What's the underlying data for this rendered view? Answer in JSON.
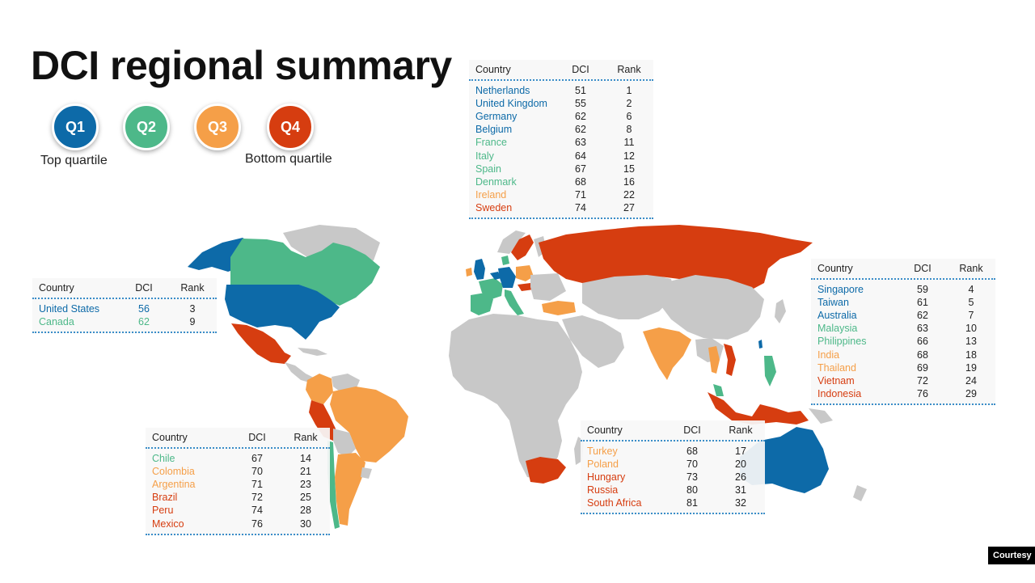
{
  "title": "DCI regional summary",
  "colors": {
    "q1": "#0d6aa8",
    "q2": "#4db889",
    "q3": "#f59f48",
    "q4": "#d63d10",
    "other": "#c8c8c8"
  },
  "legend": {
    "badges": [
      "Q1",
      "Q2",
      "Q3",
      "Q4"
    ],
    "top_label": "Top quartile",
    "bottom_label": "Bottom quartile"
  },
  "table_headers": {
    "country": "Country",
    "dci": "DCI",
    "rank": "Rank"
  },
  "tables": {
    "europe": [
      {
        "country": "Netherlands",
        "dci": "51",
        "rank": "1",
        "q": "q1"
      },
      {
        "country": "United Kingdom",
        "dci": "55",
        "rank": "2",
        "q": "q1"
      },
      {
        "country": "Germany",
        "dci": "62",
        "rank": "6",
        "q": "q1"
      },
      {
        "country": "Belgium",
        "dci": "62",
        "rank": "8",
        "q": "q1"
      },
      {
        "country": "France",
        "dci": "63",
        "rank": "11",
        "q": "q2"
      },
      {
        "country": "Italy",
        "dci": "64",
        "rank": "12",
        "q": "q2"
      },
      {
        "country": "Spain",
        "dci": "67",
        "rank": "15",
        "q": "q2"
      },
      {
        "country": "Denmark",
        "dci": "68",
        "rank": "16",
        "q": "q2"
      },
      {
        "country": "Ireland",
        "dci": "71",
        "rank": "22",
        "q": "q3"
      },
      {
        "country": "Sweden",
        "dci": "74",
        "rank": "27",
        "q": "q4"
      }
    ],
    "north_america": [
      {
        "country": "United States",
        "dci": "56",
        "rank": "3",
        "q": "q1"
      },
      {
        "country": "Canada",
        "dci": "62",
        "rank": "9",
        "q": "q2"
      }
    ],
    "asia_pacific": [
      {
        "country": "Singapore",
        "dci": "59",
        "rank": "4",
        "q": "q1"
      },
      {
        "country": "Taiwan",
        "dci": "61",
        "rank": "5",
        "q": "q1"
      },
      {
        "country": "Australia",
        "dci": "62",
        "rank": "7",
        "q": "q1"
      },
      {
        "country": "Malaysia",
        "dci": "63",
        "rank": "10",
        "q": "q2"
      },
      {
        "country": "Philippines",
        "dci": "66",
        "rank": "13",
        "q": "q2"
      },
      {
        "country": "India",
        "dci": "68",
        "rank": "18",
        "q": "q3"
      },
      {
        "country": "Thailand",
        "dci": "69",
        "rank": "19",
        "q": "q3"
      },
      {
        "country": "Vietnam",
        "dci": "72",
        "rank": "24",
        "q": "q4"
      },
      {
        "country": "Indonesia",
        "dci": "76",
        "rank": "29",
        "q": "q4"
      }
    ],
    "latin_america": [
      {
        "country": "Chile",
        "dci": "67",
        "rank": "14",
        "q": "q2"
      },
      {
        "country": "Colombia",
        "dci": "70",
        "rank": "21",
        "q": "q3"
      },
      {
        "country": "Argentina",
        "dci": "71",
        "rank": "23",
        "q": "q3"
      },
      {
        "country": "Brazil",
        "dci": "72",
        "rank": "25",
        "q": "q4"
      },
      {
        "country": "Peru",
        "dci": "74",
        "rank": "28",
        "q": "q4"
      },
      {
        "country": "Mexico",
        "dci": "76",
        "rank": "30",
        "q": "q4"
      }
    ],
    "emerging": [
      {
        "country": "Turkey",
        "dci": "68",
        "rank": "17",
        "q": "q3"
      },
      {
        "country": "Poland",
        "dci": "70",
        "rank": "20",
        "q": "q3"
      },
      {
        "country": "Hungary",
        "dci": "73",
        "rank": "26",
        "q": "q4"
      },
      {
        "country": "Russia",
        "dci": "80",
        "rank": "31",
        "q": "q4"
      },
      {
        "country": "South Africa",
        "dci": "81",
        "rank": "32",
        "q": "q4"
      }
    ]
  },
  "courtesy": "Courtesy"
}
